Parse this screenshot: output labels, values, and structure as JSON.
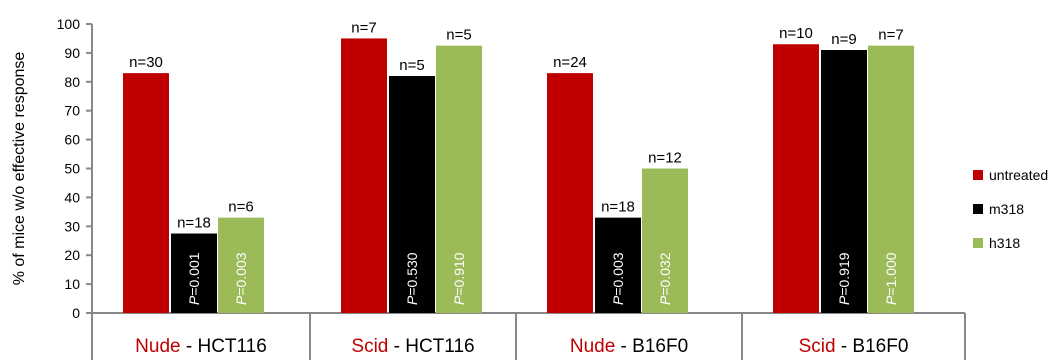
{
  "chart_data": {
    "type": "bar",
    "ylabel": "% of mice w/o effective response",
    "ylim": [
      0,
      100
    ],
    "yticks": [
      0,
      10,
      20,
      30,
      40,
      50,
      60,
      70,
      80,
      90,
      100
    ],
    "grid": false,
    "legend_position": "right",
    "categories": [
      {
        "prefix": "Nude",
        "sep": " - ",
        "name": "HCT116"
      },
      {
        "prefix": "Scid",
        "sep": " - ",
        "name": "HCT116"
      },
      {
        "prefix": "Nude",
        "sep": " - ",
        "name": "B16F0"
      },
      {
        "prefix": "Scid",
        "sep": " - ",
        "name": "B16F0"
      }
    ],
    "series": [
      {
        "name": "untreated",
        "color": "#c00000",
        "values": [
          83,
          95,
          83,
          93
        ],
        "n_labels": [
          "n=30",
          "n=7",
          "n=24",
          "n=10"
        ],
        "p_labels": [
          "",
          "",
          "",
          ""
        ]
      },
      {
        "name": "m318",
        "color": "#000000",
        "values": [
          27.5,
          82,
          33,
          91
        ],
        "n_labels": [
          "n=18",
          "n=5",
          "n=18",
          "n=9"
        ],
        "p_labels": [
          "0.001",
          "0.530",
          "0.003",
          "0.919"
        ]
      },
      {
        "name": "h318",
        "color": "#9bbb59",
        "values": [
          33,
          92.5,
          50,
          92.5
        ],
        "n_labels": [
          "n=6",
          "n=5",
          "n=12",
          "n=7"
        ],
        "p_labels": [
          "0.003",
          "0.910",
          "0.032",
          "1.000"
        ]
      }
    ],
    "p_prefix": "P",
    "p_sep": "=",
    "prefix_color": "#c00000",
    "name_color": "#000000"
  }
}
